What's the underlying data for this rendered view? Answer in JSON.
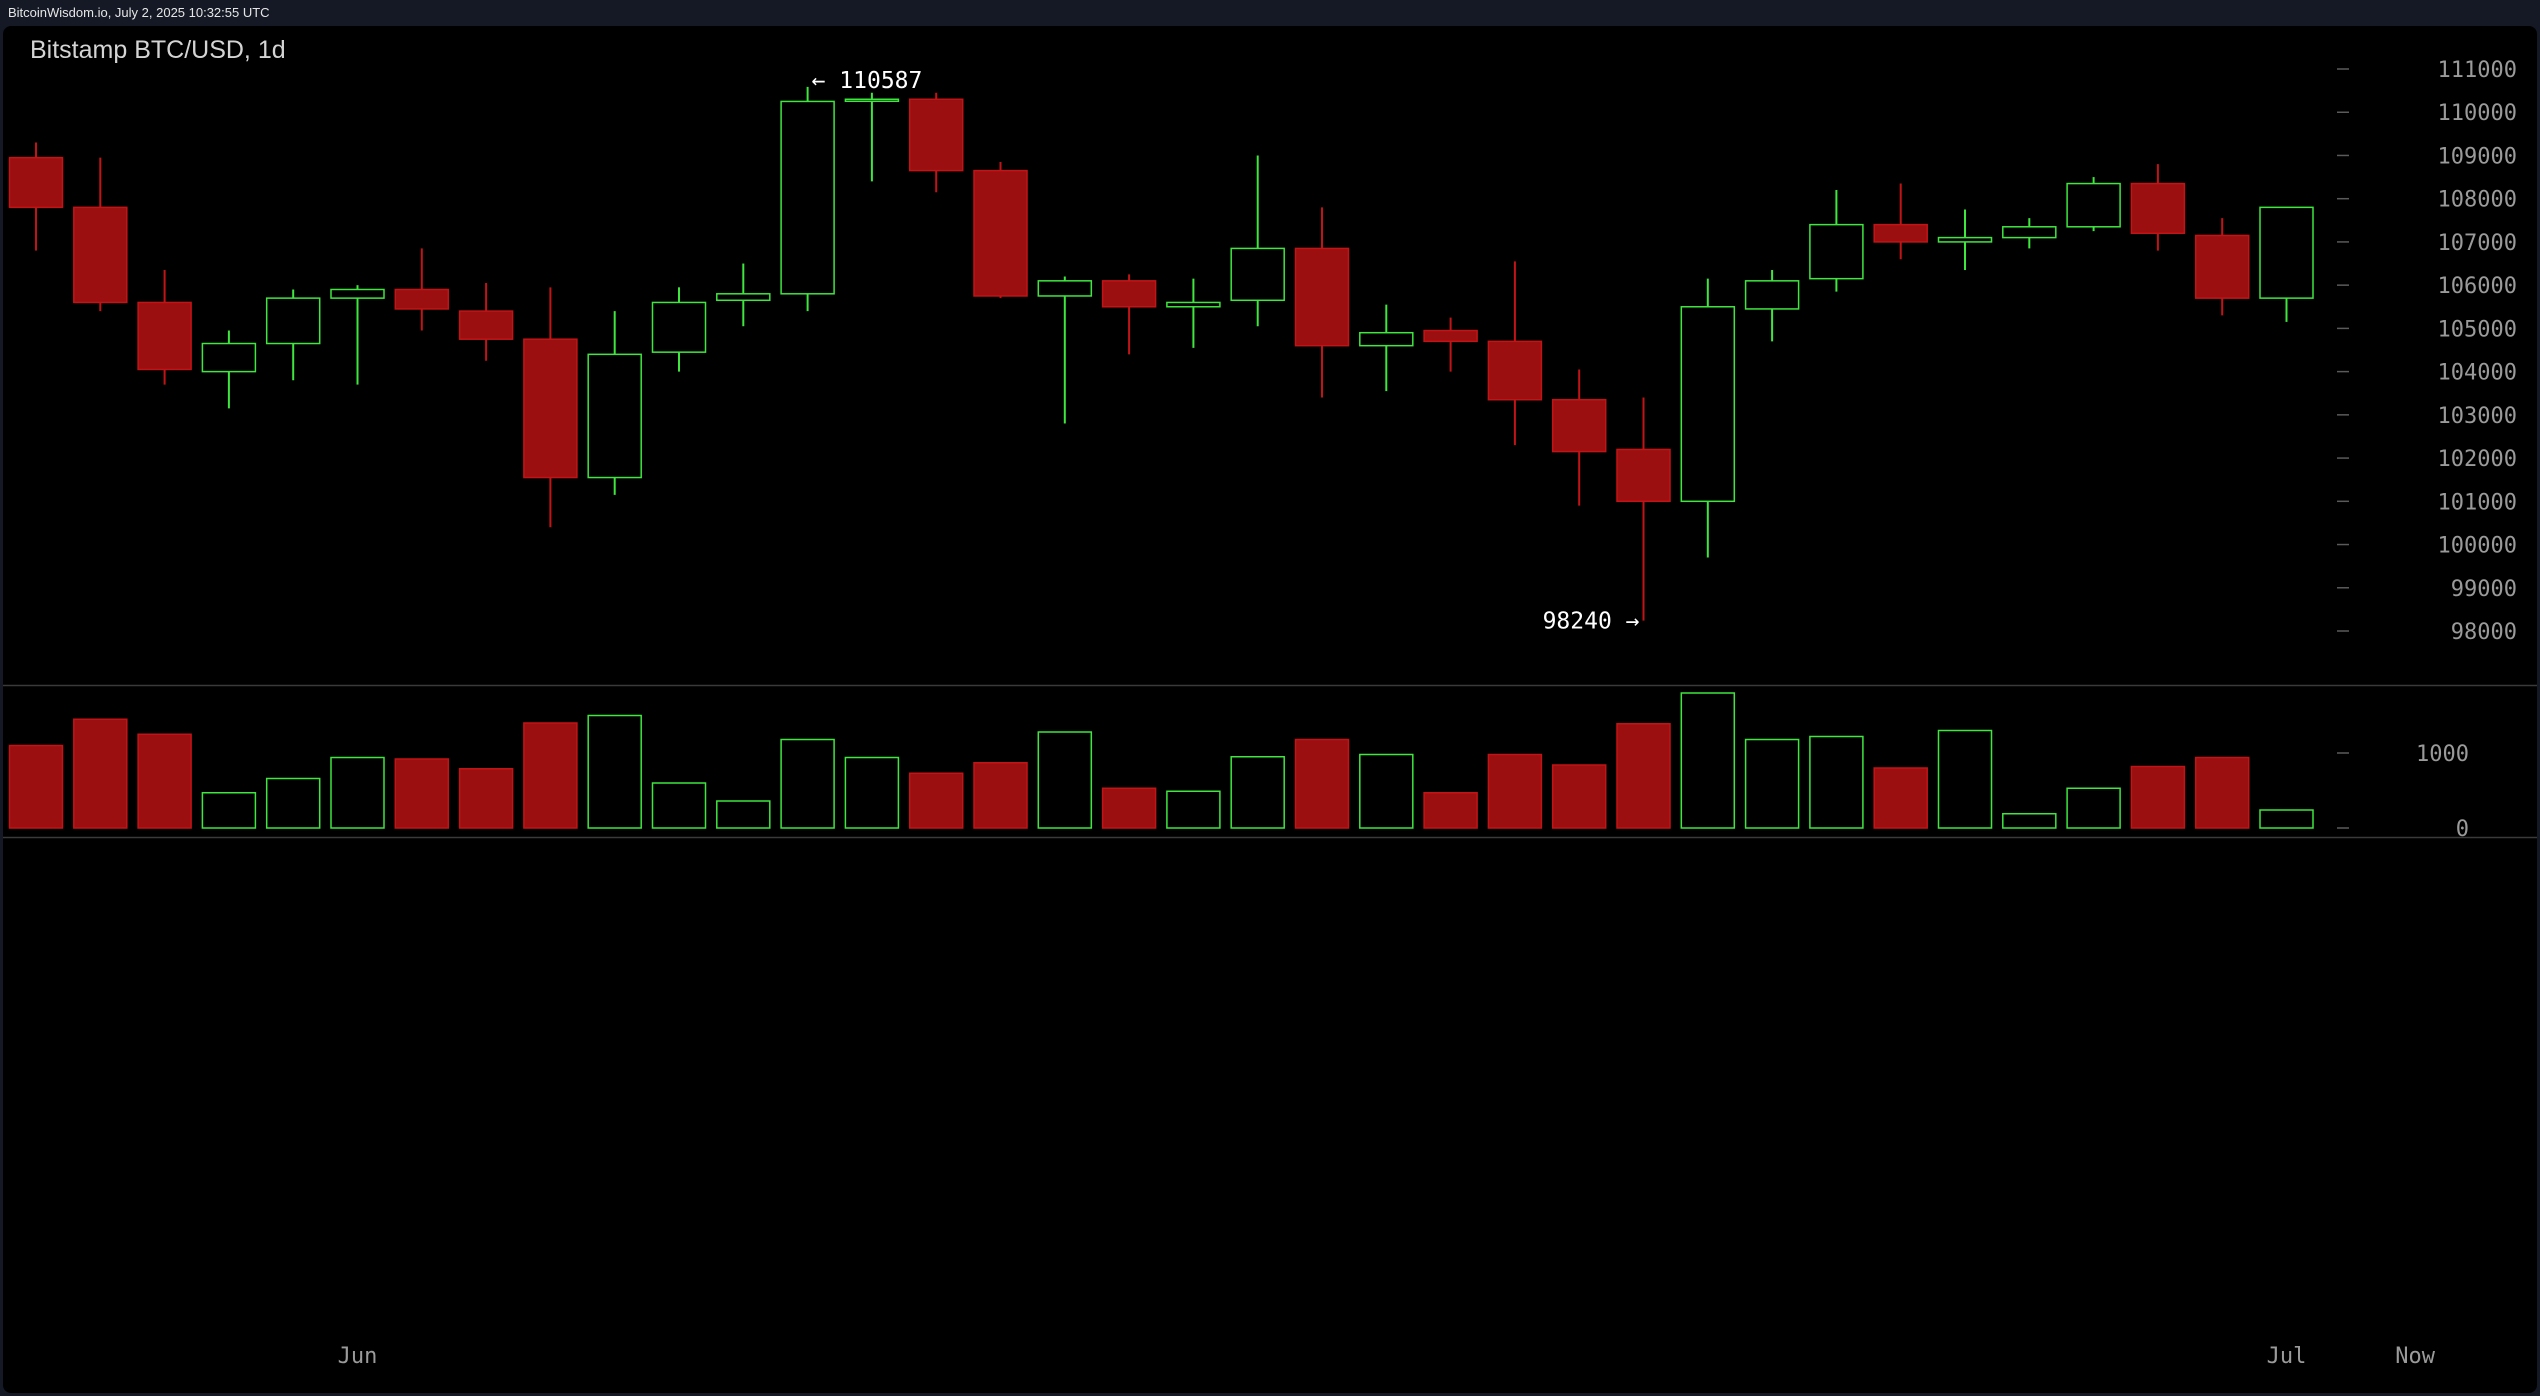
{
  "header": {
    "meta": "BitcoinWisdom.io, July 2, 2025 10:32:55 UTC"
  },
  "colors": {
    "up": "#3ee63e",
    "down": "#9b0f10",
    "down_border": "#c21416",
    "axis_text": "#9a9a9a",
    "background": "#000000"
  },
  "chart_data": {
    "type": "candlestick",
    "title": "Bitstamp BTC/USD, 1d",
    "price_axis": {
      "ticks": [
        "98000",
        "99000",
        "100000",
        "101000",
        "102000",
        "103000",
        "104000",
        "105000",
        "106000",
        "107000",
        "108000",
        "109000",
        "110000",
        "111000"
      ],
      "range": [
        97000,
        112000
      ]
    },
    "volume_axis": {
      "ticks": [
        "0",
        "1000"
      ]
    },
    "x_labels": [
      {
        "label": "Jun",
        "index": 5
      },
      {
        "label": "Jul",
        "index": 35
      },
      {
        "label": "Now",
        "index": 37
      }
    ],
    "annotations": [
      {
        "text": "← 110587",
        "index": 12,
        "value": 110587,
        "side": "right"
      },
      {
        "text": "98240 →",
        "index": 25,
        "value": 98240,
        "side": "left"
      }
    ],
    "candles": [
      {
        "o": 108950,
        "h": 109300,
        "l": 106800,
        "c": 107800,
        "v": 1100
      },
      {
        "o": 107800,
        "h": 108950,
        "l": 105400,
        "c": 105600,
        "v": 1450
      },
      {
        "o": 105600,
        "h": 106350,
        "l": 103700,
        "c": 104050,
        "v": 1250
      },
      {
        "o": 104000,
        "h": 104950,
        "l": 103150,
        "c": 104650,
        "v": 470
      },
      {
        "o": 104650,
        "h": 105900,
        "l": 103800,
        "c": 105700,
        "v": 660
      },
      {
        "o": 105700,
        "h": 106000,
        "l": 103700,
        "c": 105900,
        "v": 940
      },
      {
        "o": 105900,
        "h": 106850,
        "l": 104950,
        "c": 105450,
        "v": 920
      },
      {
        "o": 105400,
        "h": 106050,
        "l": 104250,
        "c": 104750,
        "v": 790
      },
      {
        "o": 104750,
        "h": 105950,
        "l": 100400,
        "c": 101550,
        "v": 1400
      },
      {
        "o": 101550,
        "h": 105400,
        "l": 101150,
        "c": 104400,
        "v": 1500
      },
      {
        "o": 104450,
        "h": 105950,
        "l": 104000,
        "c": 105600,
        "v": 600
      },
      {
        "o": 105650,
        "h": 106500,
        "l": 105050,
        "c": 105800,
        "v": 360
      },
      {
        "o": 105800,
        "h": 110587,
        "l": 105400,
        "c": 110250,
        "v": 1180
      },
      {
        "o": 110300,
        "h": 110450,
        "l": 108400,
        "c": 110300,
        "v": 940
      },
      {
        "o": 110300,
        "h": 110450,
        "l": 108150,
        "c": 108650,
        "v": 730
      },
      {
        "o": 108650,
        "h": 108850,
        "l": 105700,
        "c": 105750,
        "v": 870
      },
      {
        "o": 105750,
        "h": 106200,
        "l": 102800,
        "c": 106100,
        "v": 1280
      },
      {
        "o": 106100,
        "h": 106250,
        "l": 104400,
        "c": 105500,
        "v": 530
      },
      {
        "o": 105500,
        "h": 106150,
        "l": 104550,
        "c": 105600,
        "v": 490
      },
      {
        "o": 105650,
        "h": 109000,
        "l": 105050,
        "c": 106850,
        "v": 950
      },
      {
        "o": 106850,
        "h": 107800,
        "l": 103400,
        "c": 104600,
        "v": 1180
      },
      {
        "o": 104600,
        "h": 105550,
        "l": 103550,
        "c": 104900,
        "v": 980
      },
      {
        "o": 104950,
        "h": 105250,
        "l": 104000,
        "c": 104700,
        "v": 470
      },
      {
        "o": 104700,
        "h": 106550,
        "l": 102300,
        "c": 103350,
        "v": 980
      },
      {
        "o": 103350,
        "h": 104050,
        "l": 100900,
        "c": 102150,
        "v": 840
      },
      {
        "o": 102200,
        "h": 103400,
        "l": 98240,
        "c": 101000,
        "v": 1390
      },
      {
        "o": 101000,
        "h": 106150,
        "l": 99700,
        "c": 105500,
        "v": 1800
      },
      {
        "o": 105450,
        "h": 106350,
        "l": 104700,
        "c": 106100,
        "v": 1180
      },
      {
        "o": 106150,
        "h": 108200,
        "l": 105850,
        "c": 107400,
        "v": 1220
      },
      {
        "o": 107400,
        "h": 108350,
        "l": 106600,
        "c": 107000,
        "v": 800
      },
      {
        "o": 107000,
        "h": 107750,
        "l": 106350,
        "c": 107100,
        "v": 1300
      },
      {
        "o": 107100,
        "h": 107550,
        "l": 106850,
        "c": 107350,
        "v": 190
      },
      {
        "o": 107350,
        "h": 108500,
        "l": 107250,
        "c": 108350,
        "v": 530
      },
      {
        "o": 108350,
        "h": 108800,
        "l": 106800,
        "c": 107200,
        "v": 820
      },
      {
        "o": 107150,
        "h": 107550,
        "l": 105300,
        "c": 105700,
        "v": 940
      },
      {
        "o": 105700,
        "h": 107800,
        "l": 105150,
        "c": 107800,
        "v": 240
      }
    ]
  }
}
